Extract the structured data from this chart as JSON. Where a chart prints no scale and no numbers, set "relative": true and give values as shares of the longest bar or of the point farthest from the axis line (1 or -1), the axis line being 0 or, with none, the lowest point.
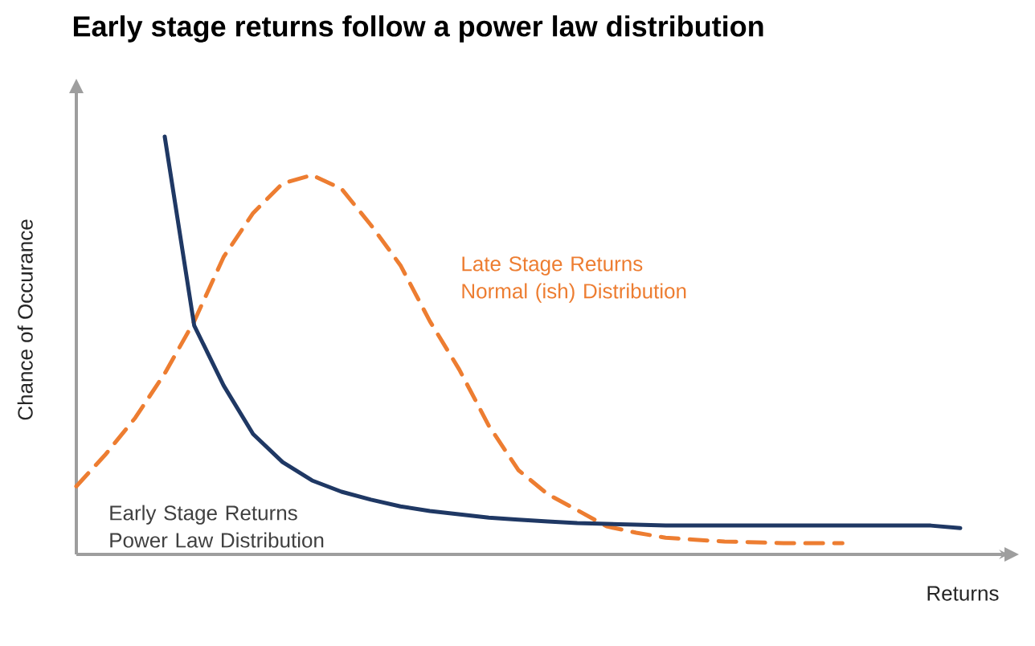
{
  "chart_data": {
    "type": "line",
    "title": "Early stage returns follow a power law distribution",
    "xlabel": "Returns",
    "ylabel": "Chance of Occurance",
    "relative": true,
    "categories": [
      null,
      null,
      null,
      null,
      null,
      null,
      null,
      null,
      null,
      null,
      null,
      null,
      null,
      null,
      null,
      null,
      null,
      null,
      null,
      null,
      null,
      null,
      null,
      null,
      null,
      null,
      null,
      null,
      null,
      null,
      null
    ],
    "series": [
      {
        "name": "Late Stage Returns Normal (ish) Distribution",
        "color": "#ed7d31",
        "line_style": "dashed",
        "values": [
          0.163,
          0.24,
          0.327,
          0.433,
          0.558,
          0.712,
          0.817,
          0.888,
          0.908,
          0.875,
          0.788,
          0.692,
          0.558,
          0.442,
          0.308,
          0.202,
          0.144,
          0.106,
          0.067,
          0.052,
          0.04,
          0.035,
          0.031,
          0.029,
          0.027,
          0.027,
          0.027,
          null,
          null,
          null,
          null
        ]
      },
      {
        "name": "Early Stage Returns Power Law Distribution",
        "color": "#1f3864",
        "line_style": "solid",
        "values": [
          null,
          null,
          null,
          1,
          0.548,
          0.404,
          0.288,
          0.221,
          0.177,
          0.15,
          0.131,
          0.115,
          0.104,
          0.096,
          0.088,
          0.083,
          0.079,
          0.075,
          0.073,
          0.071,
          0.069,
          0.069,
          0.069,
          0.069,
          0.069,
          0.069,
          0.069,
          0.069,
          0.069,
          0.069,
          0.063
        ]
      }
    ]
  }
}
